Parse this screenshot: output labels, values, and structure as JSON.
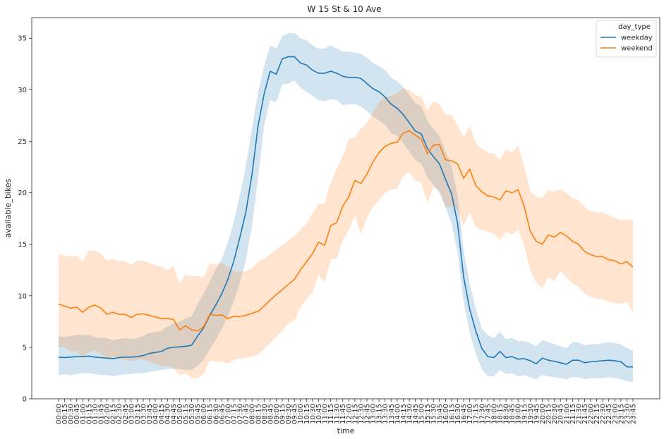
{
  "chart_data": {
    "type": "line",
    "title": "W 15 St & 10 Ave",
    "xlabel": "time",
    "ylabel": "available_bikes",
    "ylim": [
      0,
      37
    ],
    "yticks": [
      "0",
      "5",
      "10",
      "15",
      "20",
      "25",
      "30",
      "35"
    ],
    "grid": false,
    "legend_placement": "top-right",
    "legend_title": "day_type",
    "x": [
      "00:00",
      "00:15",
      "00:30",
      "00:45",
      "01:00",
      "01:15",
      "01:30",
      "01:45",
      "02:00",
      "02:15",
      "02:30",
      "02:45",
      "03:00",
      "03:15",
      "03:30",
      "03:45",
      "04:00",
      "04:15",
      "04:30",
      "04:45",
      "05:00",
      "05:15",
      "05:30",
      "05:45",
      "06:00",
      "06:15",
      "06:30",
      "06:45",
      "07:00",
      "07:15",
      "07:30",
      "07:45",
      "08:00",
      "08:15",
      "08:30",
      "08:45",
      "09:00",
      "09:15",
      "09:30",
      "09:45",
      "10:00",
      "10:15",
      "10:30",
      "10:45",
      "11:00",
      "11:15",
      "11:30",
      "11:45",
      "12:00",
      "12:15",
      "12:30",
      "12:45",
      "13:00",
      "13:15",
      "13:30",
      "13:45",
      "14:00",
      "14:15",
      "14:30",
      "14:45",
      "15:00",
      "15:15",
      "15:30",
      "15:45",
      "16:00",
      "16:15",
      "16:30",
      "16:45",
      "17:00",
      "17:15",
      "17:30",
      "17:45",
      "18:00",
      "18:15",
      "18:30",
      "18:45",
      "19:00",
      "19:15",
      "19:30",
      "19:45",
      "20:00",
      "20:15",
      "20:30",
      "20:45",
      "21:00",
      "21:15",
      "21:30",
      "21:45",
      "22:00",
      "22:15",
      "22:30",
      "22:45",
      "23:00",
      "23:15",
      "23:30",
      "23:45"
    ],
    "series": [
      {
        "name": "weekday",
        "color": "#1f77b4",
        "values": [
          4.05,
          4.0,
          4.05,
          4.1,
          4.1,
          4.15,
          4.05,
          4.0,
          3.95,
          3.9,
          4.0,
          4.05,
          4.05,
          4.1,
          4.2,
          4.4,
          4.5,
          4.6,
          4.9,
          5.0,
          5.05,
          5.1,
          5.2,
          6.1,
          6.9,
          8.1,
          9.1,
          10.2,
          11.6,
          13.4,
          15.7,
          18.2,
          21.8,
          26.5,
          29.6,
          31.8,
          31.5,
          33.0,
          33.2,
          33.2,
          32.6,
          32.4,
          31.9,
          31.6,
          31.6,
          31.8,
          31.6,
          31.3,
          31.2,
          31.2,
          31.1,
          30.6,
          30.1,
          29.8,
          29.3,
          28.6,
          28.2,
          27.6,
          26.8,
          26.0,
          25.7,
          24.3,
          23.5,
          22.8,
          21.3,
          19.9,
          17.0,
          11.8,
          8.7,
          6.6,
          4.9,
          4.1,
          4.0,
          4.6,
          4.0,
          4.1,
          3.85,
          3.9,
          3.7,
          3.4,
          3.95,
          3.75,
          3.65,
          3.5,
          3.35,
          3.75,
          3.75,
          3.5,
          3.6,
          3.65,
          3.7,
          3.75,
          3.7,
          3.6,
          3.1,
          3.1
        ],
        "lower": [
          2.3,
          2.4,
          2.3,
          2.4,
          2.5,
          2.5,
          2.4,
          2.3,
          2.3,
          2.2,
          2.3,
          2.4,
          2.4,
          2.5,
          2.5,
          2.6,
          2.7,
          2.8,
          2.9,
          2.9,
          2.9,
          2.8,
          2.8,
          3.2,
          3.8,
          4.8,
          5.7,
          6.8,
          8.0,
          9.5,
          11.3,
          13.6,
          16.8,
          21.5,
          26.5,
          29.0,
          28.8,
          30.5,
          30.6,
          30.9,
          30.2,
          29.8,
          29.4,
          29.0,
          28.9,
          29.1,
          29.0,
          28.5,
          28.6,
          28.6,
          28.4,
          27.9,
          27.4,
          27.0,
          26.6,
          25.8,
          25.5,
          24.8,
          24.0,
          23.2,
          22.8,
          21.5,
          20.8,
          20.0,
          18.6,
          17.0,
          14.2,
          9.4,
          6.4,
          4.4,
          2.9,
          2.2,
          2.2,
          2.8,
          2.4,
          2.5,
          2.2,
          2.3,
          2.1,
          1.9,
          2.3,
          2.2,
          2.1,
          2.0,
          1.9,
          2.1,
          2.1,
          1.9,
          2.0,
          2.0,
          2.0,
          2.1,
          2.0,
          1.9,
          1.7,
          1.6
        ],
        "upper": [
          6.1,
          6.0,
          6.1,
          6.2,
          6.2,
          6.2,
          6.0,
          5.9,
          5.9,
          5.7,
          5.8,
          5.9,
          5.8,
          5.9,
          6.1,
          6.4,
          6.5,
          6.6,
          7.0,
          7.3,
          7.5,
          7.8,
          8.0,
          9.2,
          10.2,
          11.4,
          12.6,
          13.6,
          15.2,
          17.2,
          19.8,
          22.7,
          26.3,
          29.8,
          32.3,
          34.3,
          34.0,
          35.2,
          35.5,
          35.5,
          35.0,
          34.8,
          34.3,
          34.0,
          34.0,
          34.3,
          34.0,
          33.7,
          33.7,
          33.6,
          33.5,
          33.1,
          32.6,
          32.3,
          31.9,
          31.2,
          30.8,
          30.3,
          29.5,
          28.7,
          28.4,
          27.0,
          26.2,
          25.5,
          24.0,
          22.6,
          19.7,
          14.4,
          11.2,
          8.8,
          6.8,
          6.2,
          5.9,
          6.5,
          5.8,
          5.9,
          5.6,
          5.6,
          5.4,
          5.1,
          5.7,
          5.5,
          5.3,
          5.1,
          4.9,
          5.5,
          5.5,
          5.2,
          5.3,
          5.3,
          5.4,
          5.5,
          5.4,
          5.3,
          4.9,
          4.7
        ]
      },
      {
        "name": "weekend",
        "color": "#ff7f0e",
        "values": [
          9.2,
          9.0,
          8.8,
          8.9,
          8.4,
          8.9,
          9.1,
          8.8,
          8.2,
          8.4,
          8.2,
          8.2,
          7.9,
          8.2,
          8.25,
          8.1,
          7.95,
          7.8,
          7.8,
          7.7,
          6.7,
          7.1,
          6.7,
          6.6,
          7.0,
          8.2,
          8.1,
          8.15,
          7.8,
          8.0,
          8.0,
          8.1,
          8.3,
          8.5,
          9.0,
          9.6,
          10.1,
          10.6,
          11.1,
          11.6,
          12.5,
          13.3,
          14.1,
          15.2,
          14.9,
          16.8,
          17.1,
          18.7,
          19.6,
          21.2,
          20.9,
          21.8,
          23.0,
          23.9,
          24.5,
          24.8,
          24.9,
          25.8,
          26.0,
          25.6,
          25.2,
          23.8,
          24.6,
          24.7,
          23.2,
          23.1,
          22.8,
          21.4,
          22.3,
          20.7,
          20.1,
          19.7,
          19.6,
          19.3,
          20.2,
          20.0,
          20.3,
          18.7,
          16.3,
          15.3,
          15.0,
          15.9,
          15.7,
          16.15,
          15.8,
          15.3,
          15.0,
          14.3,
          14.0,
          13.8,
          13.8,
          13.5,
          13.4,
          13.1,
          13.3,
          12.8
        ],
        "lower": [
          5.0,
          5.0,
          4.6,
          4.6,
          4.0,
          4.5,
          4.7,
          4.4,
          3.8,
          4.0,
          3.9,
          3.8,
          3.6,
          3.8,
          3.8,
          3.6,
          3.4,
          3.2,
          3.2,
          3.0,
          2.3,
          2.5,
          2.0,
          2.0,
          2.4,
          3.7,
          3.6,
          3.6,
          3.4,
          3.8,
          3.9,
          4.0,
          4.1,
          4.3,
          4.8,
          5.4,
          6.0,
          6.6,
          7.3,
          7.6,
          8.9,
          9.7,
          10.3,
          12.0,
          11.3,
          13.5,
          13.6,
          15.4,
          16.3,
          17.8,
          16.0,
          17.6,
          18.6,
          19.3,
          20.0,
          20.3,
          20.4,
          21.6,
          22.0,
          21.2,
          21.0,
          19.0,
          20.6,
          20.2,
          18.6,
          18.7,
          18.3,
          16.8,
          18.1,
          16.7,
          16.4,
          16.2,
          16.0,
          15.4,
          16.2,
          16.0,
          16.4,
          14.9,
          12.5,
          11.3,
          10.7,
          11.8,
          11.4,
          12.4,
          11.8,
          11.2,
          10.9,
          10.2,
          9.9,
          9.7,
          9.7,
          9.4,
          9.3,
          9.2,
          9.4,
          8.3
        ],
        "upper": [
          14.0,
          13.9,
          13.8,
          13.9,
          13.3,
          14.4,
          14.4,
          14.1,
          13.4,
          13.6,
          13.4,
          13.4,
          13.0,
          13.4,
          13.4,
          13.2,
          13.0,
          12.8,
          12.5,
          12.9,
          11.2,
          12.1,
          11.9,
          11.9,
          11.8,
          13.2,
          13.0,
          13.2,
          12.8,
          12.4,
          12.3,
          12.4,
          12.7,
          13.3,
          13.6,
          14.0,
          14.5,
          14.9,
          15.4,
          15.8,
          16.4,
          17.0,
          18.0,
          18.9,
          19.0,
          21.0,
          22.3,
          23.6,
          25.2,
          25.4,
          26.2,
          26.8,
          27.8,
          28.8,
          29.3,
          29.4,
          29.7,
          30.1,
          30.0,
          29.5,
          29.3,
          28.0,
          28.9,
          28.6,
          27.6,
          27.6,
          26.5,
          25.4,
          26.5,
          24.8,
          24.3,
          23.9,
          23.8,
          23.2,
          24.2,
          23.9,
          24.6,
          22.6,
          20.2,
          19.6,
          19.5,
          20.3,
          20.1,
          20.4,
          20.0,
          19.5,
          19.3,
          18.6,
          18.2,
          18.1,
          18.1,
          17.8,
          17.6,
          17.3,
          17.4,
          17.4
        ]
      }
    ]
  }
}
